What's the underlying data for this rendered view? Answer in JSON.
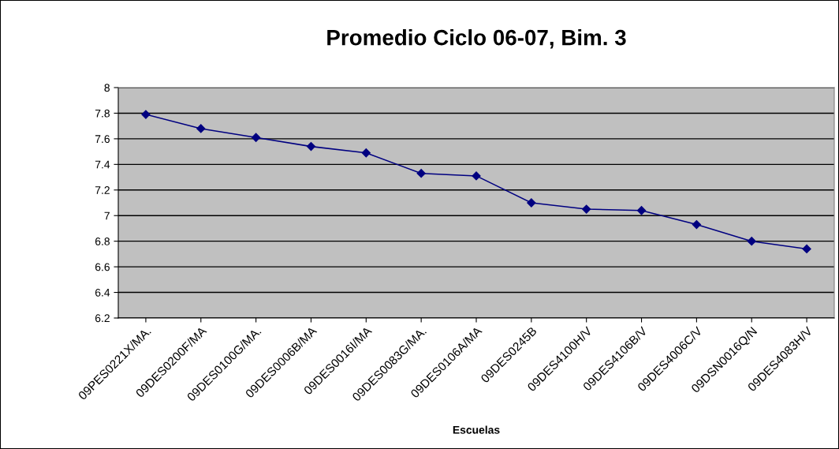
{
  "chart_data": {
    "type": "line",
    "title": "Promedio Ciclo 06-07, Bim. 3",
    "xlabel": "Escuelas",
    "categories": [
      "09PES0221X/MA.",
      "09DES0200F/MA",
      "09DES0100G/MA.",
      "09DES0006B/MA",
      "09DES0016I/MA",
      "09DES0083G/MA.",
      "09DES0106A/MA",
      "09DES0245B",
      "09DES4100H/V",
      "09DES4106B/V",
      "09DES4006C/V",
      "09DSN0016Q/N",
      "09DES4083H/V"
    ],
    "series": [
      {
        "color": "#000080",
        "values": [
          7.79,
          7.68,
          7.61,
          7.54,
          7.49,
          7.33,
          7.31,
          7.1,
          7.05,
          7.04,
          6.93,
          6.8,
          6.74
        ]
      }
    ],
    "ylim": [
      6.2,
      8
    ],
    "yticks": [
      6.2,
      6.4,
      6.6,
      6.8,
      7,
      7.2,
      7.4,
      7.6,
      7.8,
      8
    ],
    "grid": "y",
    "marker": "diamond",
    "line_style": "solid"
  }
}
